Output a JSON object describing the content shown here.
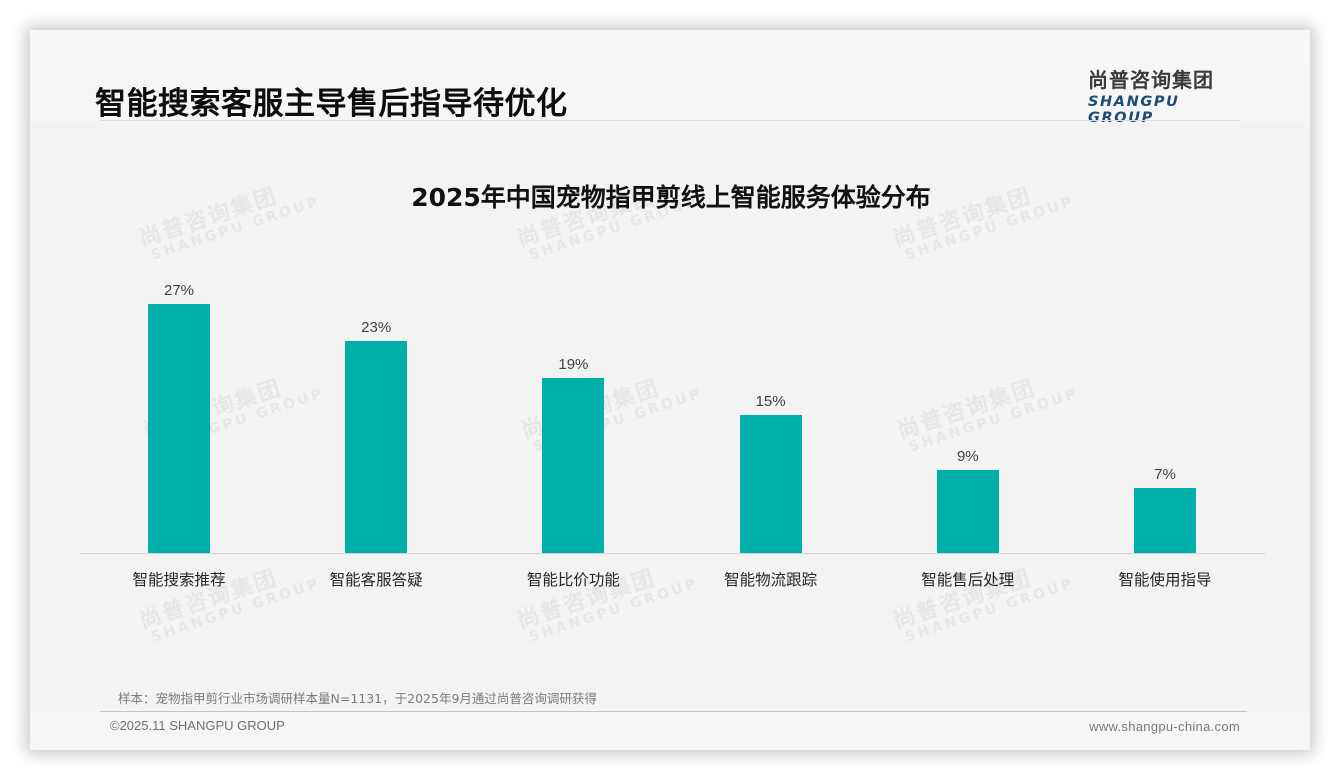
{
  "header": {
    "title": "智能搜索客服主导售后指导待优化",
    "logo_cn": "尚普咨询集团",
    "logo_en": "SHANGPU GROUP"
  },
  "watermark": {
    "cn": "尚普咨询集团",
    "en": "SHANGPU GROUP"
  },
  "colors": {
    "bar": "#00b0a8",
    "background": "#f3f3f3",
    "logo_en": "#1d4a78"
  },
  "chart_data": {
    "type": "bar",
    "title": "2025年中国宠物指甲剪线上智能服务体验分布",
    "categories": [
      "智能搜索推荐",
      "智能客服答疑",
      "智能比价功能",
      "智能物流跟踪",
      "智能售后处理",
      "智能使用指导"
    ],
    "values": [
      27,
      23,
      19,
      15,
      9,
      7
    ],
    "value_labels": [
      "27%",
      "23%",
      "19%",
      "15%",
      "9%",
      "7%"
    ],
    "unit": "%",
    "xlabel": "",
    "ylabel": "",
    "ylim": [
      0,
      30
    ],
    "grid": false,
    "legend": null,
    "y_axis_visible": false
  },
  "footer": {
    "note": "样本：宠物指甲剪行业市场调研样本量N=1131，于2025年9月通过尚普咨询调研获得",
    "copyright": "©2025.11 SHANGPU GROUP",
    "website": "www.shangpu-china.com"
  }
}
